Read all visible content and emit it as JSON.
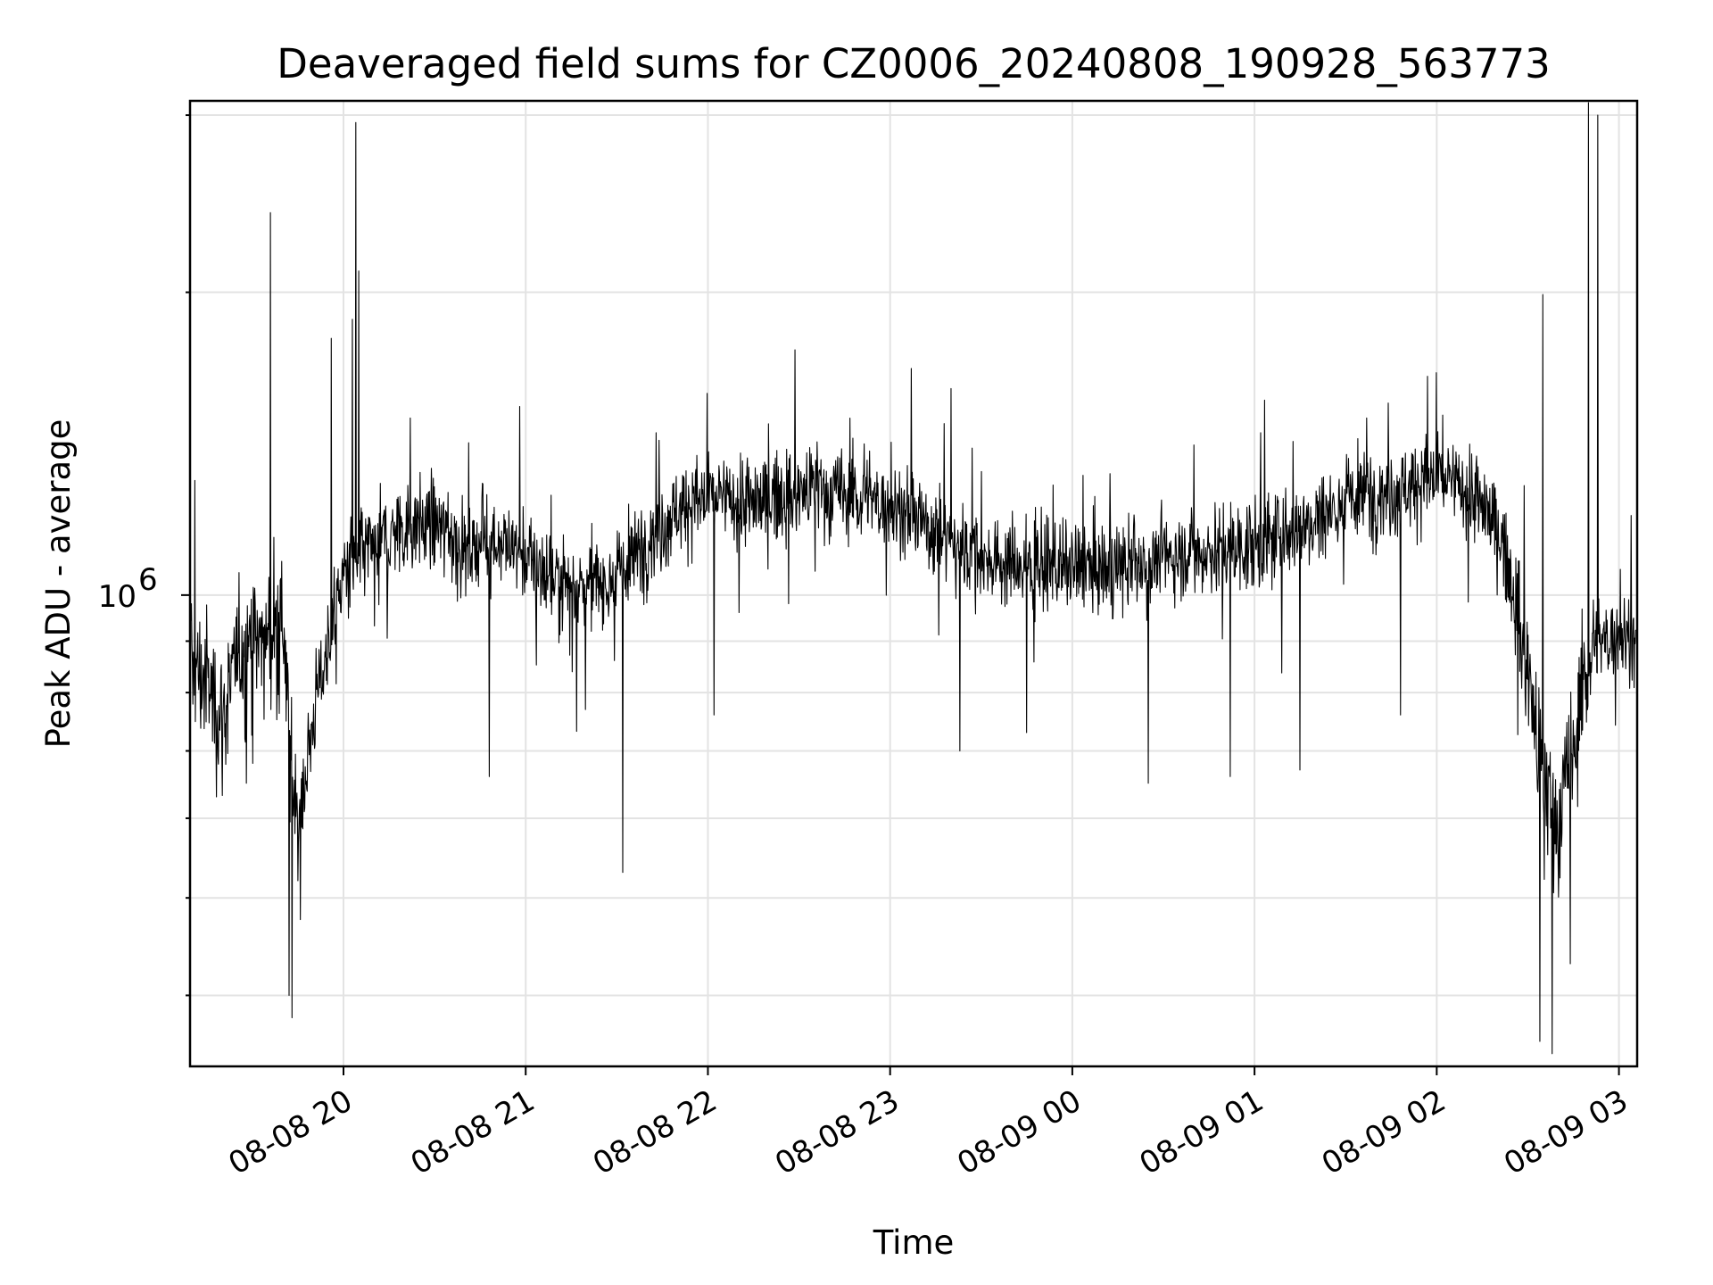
{
  "chart_data": {
    "type": "line",
    "title": "Deaveraged field sums for CZ0006_20240808_190928_563773",
    "xlabel": "Time",
    "ylabel": "Peak ADU - average",
    "x_scale": "time",
    "y_scale": "log",
    "xlim": [
      "2024-08-08 19:09:28",
      "2024-08-09 03:06:00"
    ],
    "ylim": [
      340000,
      3100000
    ],
    "grid": true,
    "x_ticks": [
      {
        "value": "2024-08-08 20:00",
        "label": "08-08 20"
      },
      {
        "value": "2024-08-08 21:00",
        "label": "08-08 21"
      },
      {
        "value": "2024-08-08 22:00",
        "label": "08-08 22"
      },
      {
        "value": "2024-08-08 23:00",
        "label": "08-08 23"
      },
      {
        "value": "2024-08-09 00:00",
        "label": "08-09 00"
      },
      {
        "value": "2024-08-09 01:00",
        "label": "08-09 01"
      },
      {
        "value": "2024-08-09 02:00",
        "label": "08-09 02"
      },
      {
        "value": "2024-08-09 03:00",
        "label": "08-09 03"
      }
    ],
    "y_ticks_major": [
      {
        "value": 1000000,
        "label": "10",
        "exponent": "6"
      }
    ],
    "y_ticks_minor": [
      400000,
      500000,
      600000,
      700000,
      800000,
      900000,
      2000000,
      3000000
    ],
    "line_color": "#000000",
    "series": [
      {
        "time": [
          "2024-08-08 19:09",
          "2024-08-08 19:15",
          "2024-08-08 19:20",
          "2024-08-08 19:26",
          "2024-08-08 19:30",
          "2024-08-08 19:35",
          "2024-08-08 19:40",
          "2024-08-08 19:43",
          "2024-08-08 19:46",
          "2024-08-08 19:50",
          "2024-08-08 19:55",
          "2024-08-08 20:00",
          "2024-08-08 20:10",
          "2024-08-08 20:20",
          "2024-08-08 20:30",
          "2024-08-08 20:40",
          "2024-08-08 20:50",
          "2024-08-08 21:00",
          "2024-08-08 21:10",
          "2024-08-08 21:20",
          "2024-08-08 21:30",
          "2024-08-08 21:40",
          "2024-08-08 21:50",
          "2024-08-08 22:00",
          "2024-08-08 22:15",
          "2024-08-08 22:30",
          "2024-08-08 22:45",
          "2024-08-08 23:00",
          "2024-08-08 23:15",
          "2024-08-08 23:30",
          "2024-08-08 23:45",
          "2024-08-09 00:00",
          "2024-08-09 00:15",
          "2024-08-09 00:30",
          "2024-08-09 00:45",
          "2024-08-09 01:00",
          "2024-08-09 01:15",
          "2024-08-09 01:30",
          "2024-08-09 01:45",
          "2024-08-09 02:00",
          "2024-08-09 02:10",
          "2024-08-09 02:20",
          "2024-08-09 02:25",
          "2024-08-09 02:30",
          "2024-08-09 02:35",
          "2024-08-09 02:40",
          "2024-08-09 02:45",
          "2024-08-09 02:50",
          "2024-08-09 02:55",
          "2024-08-09 03:00",
          "2024-08-09 03:05"
        ],
        "values": [
          850000,
          820000,
          750000,
          880000,
          900000,
          900000,
          930000,
          650000,
          600000,
          760000,
          900000,
          1050000,
          1120000,
          1170000,
          1180000,
          1110000,
          1140000,
          1090000,
          1040000,
          1020000,
          1040000,
          1130000,
          1220000,
          1250000,
          1230000,
          1270000,
          1260000,
          1230000,
          1160000,
          1090000,
          1070000,
          1060000,
          1060000,
          1090000,
          1110000,
          1120000,
          1170000,
          1240000,
          1270000,
          1310000,
          1270000,
          1170000,
          1020000,
          850000,
          640000,
          600000,
          700000,
          860000,
          900000,
          920000,
          900000
        ]
      },
      {
        "time": [
          "2024-08-08 19:11",
          "2024-08-08 19:28",
          "2024-08-08 19:36",
          "2024-08-08 19:42",
          "2024-08-08 19:43",
          "2024-08-08 19:56",
          "2024-08-08 20:03",
          "2024-08-08 20:04",
          "2024-08-08 20:05",
          "2024-08-08 20:22",
          "2024-08-08 20:48",
          "2024-08-08 20:58",
          "2024-08-08 21:32",
          "2024-08-08 21:43",
          "2024-08-08 22:02",
          "2024-08-08 22:20",
          "2024-08-08 22:36",
          "2024-08-08 23:07",
          "2024-08-08 23:23",
          "2024-08-08 23:27",
          "2024-08-08 23:45",
          "2024-08-09 00:25",
          "2024-08-09 00:40",
          "2024-08-09 00:52",
          "2024-08-09 01:02",
          "2024-08-09 01:15",
          "2024-08-09 01:37",
          "2024-08-09 01:48",
          "2024-08-09 01:57",
          "2024-08-09 02:02",
          "2024-08-09 02:13",
          "2024-08-09 02:34",
          "2024-08-09 02:35",
          "2024-08-09 02:38",
          "2024-08-09 02:44",
          "2024-08-09 02:50",
          "2024-08-09 02:53",
          "2024-08-09 03:04"
        ],
        "values": [
          1300000,
          650000,
          2400000,
          400000,
          380000,
          1800000,
          1880000,
          2950000,
          2100000,
          1500000,
          660000,
          1540000,
          530000,
          1450000,
          760000,
          1480000,
          1420000,
          1680000,
          700000,
          1400000,
          730000,
          650000,
          1410000,
          660000,
          1450000,
          670000,
          1500000,
          760000,
          1650000,
          1510000,
          1350000,
          360000,
          1990000,
          350000,
          430000,
          3300000,
          3000000,
          1200000
        ]
      }
    ]
  }
}
